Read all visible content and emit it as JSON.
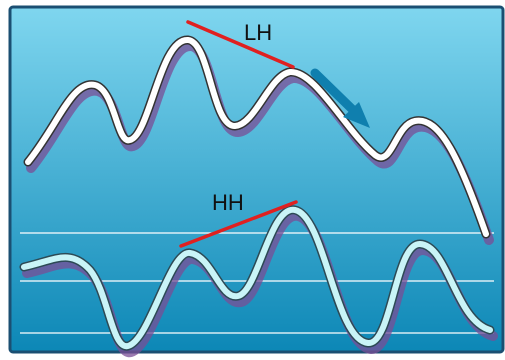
{
  "labels": {
    "upper_divergence": "LH",
    "lower_divergence": "HH"
  },
  "colors": {
    "panel_top": "#7fd6ef",
    "panel_bottom": "#0c87b6",
    "border": "#1b4f72",
    "price_line": "#ffffff",
    "oscillator_line": "#c9f4f7",
    "line_shadow": "#7a4d96",
    "divergence_line": "#e02020",
    "arrow": "#0f7fae",
    "grid_line": "#ffffff"
  },
  "icons": {
    "trend_arrow": "arrow-down-right-icon"
  }
}
